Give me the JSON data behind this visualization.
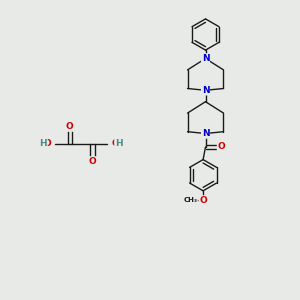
{
  "bg_color": "#e8eae8",
  "bond_color": "#1a1a1a",
  "N_color": "#0000cc",
  "O_color": "#cc0000",
  "H_color": "#4a8a8a",
  "font_size_atom": 6.5,
  "line_width": 1.0,
  "fig_w": 3.0,
  "fig_h": 3.0,
  "dpi": 100,
  "xlim": [
    0,
    10
  ],
  "ylim": [
    0,
    10
  ]
}
